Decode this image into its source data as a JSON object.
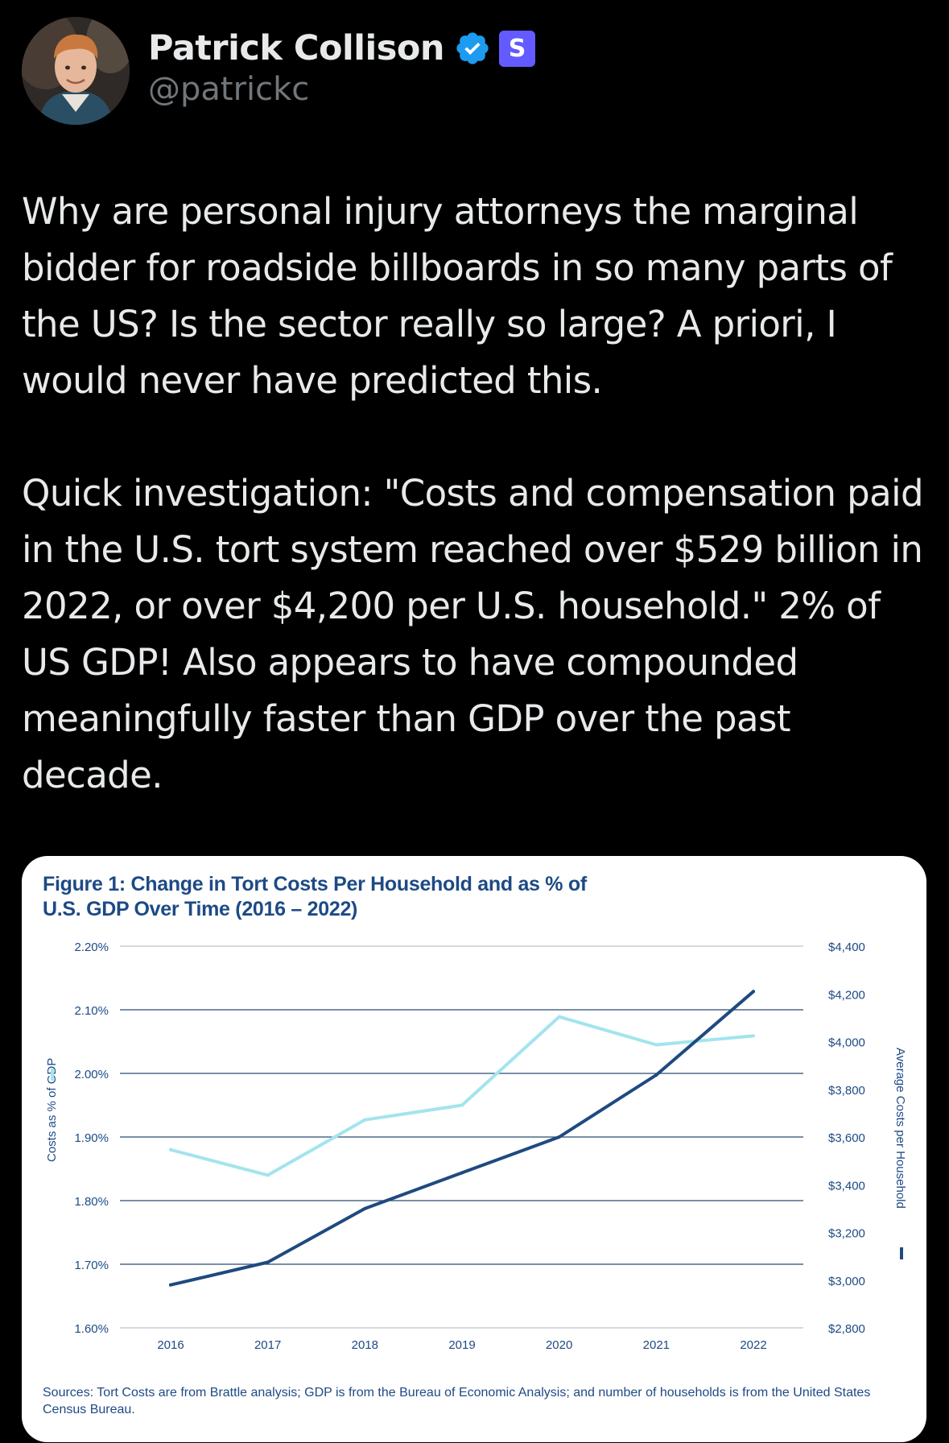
{
  "author": {
    "display_name": "Patrick Collison",
    "handle": "@patrickc",
    "verified_icon": "verified-badge-icon",
    "affiliation_badge": "S",
    "colors": {
      "verified": "#1d9bf0",
      "affiliation": "#635bff"
    }
  },
  "tweet": {
    "paragraphs": [
      "Why are personal injury attorneys the marginal bidder for roadside billboards in so many parts of the US? Is the sector really so large? A priori, I would never have predicted this.",
      "Quick investigation: \"Costs and compensation paid in the U.S. tort system reached over $529 billion in 2022, or over $4,200 per U.S. household.\" 2% of US GDP! Also appears to have compounded meaningfully faster than GDP over the past decade."
    ]
  },
  "media": {
    "title": "Figure 1: Change in Tort Costs Per Household and as % of\nU.S. GDP Over Time (2016 – 2022)",
    "sources": "Sources: Tort Costs are from Brattle analysis; GDP is from the Bureau of Economic Analysis; and number of households is from the United States Census Bureau."
  },
  "chart_data": {
    "type": "line",
    "title": "Figure 1: Change in Tort Costs Per Household and as % of U.S. GDP Over Time (2016 – 2022)",
    "x": [
      "2016",
      "2017",
      "2018",
      "2019",
      "2020",
      "2021",
      "2022"
    ],
    "y_left": {
      "label": "Costs as % of GDP",
      "ticks": [
        "2.20%",
        "2.10%",
        "2.00%",
        "1.90%",
        "1.80%",
        "1.70%",
        "1.60%"
      ],
      "range": [
        1.6,
        2.2
      ]
    },
    "y_right": {
      "label": "Average Costs per Household",
      "ticks": [
        "$4,400",
        "$4,200",
        "$4,000",
        "$3,800",
        "$3,600",
        "$3,400",
        "$3,200",
        "$3,000",
        "$2,800"
      ],
      "range": [
        2800,
        4400
      ]
    },
    "series": [
      {
        "name": "Costs as % of GDP",
        "axis": "left",
        "color": "#a3e4ee",
        "values": [
          1.88,
          1.84,
          1.927,
          1.95,
          2.089,
          2.045,
          2.059
        ]
      },
      {
        "name": "Average Costs per Household",
        "axis": "right",
        "color": "#1f4a80",
        "values": [
          2980,
          3075,
          3300,
          3450,
          3600,
          3860,
          4210
        ]
      }
    ],
    "grid": true,
    "colors": {
      "text": "#1d4a85",
      "grid_light": "#c9cdd2",
      "grid_dark": "#2c4a72"
    }
  }
}
